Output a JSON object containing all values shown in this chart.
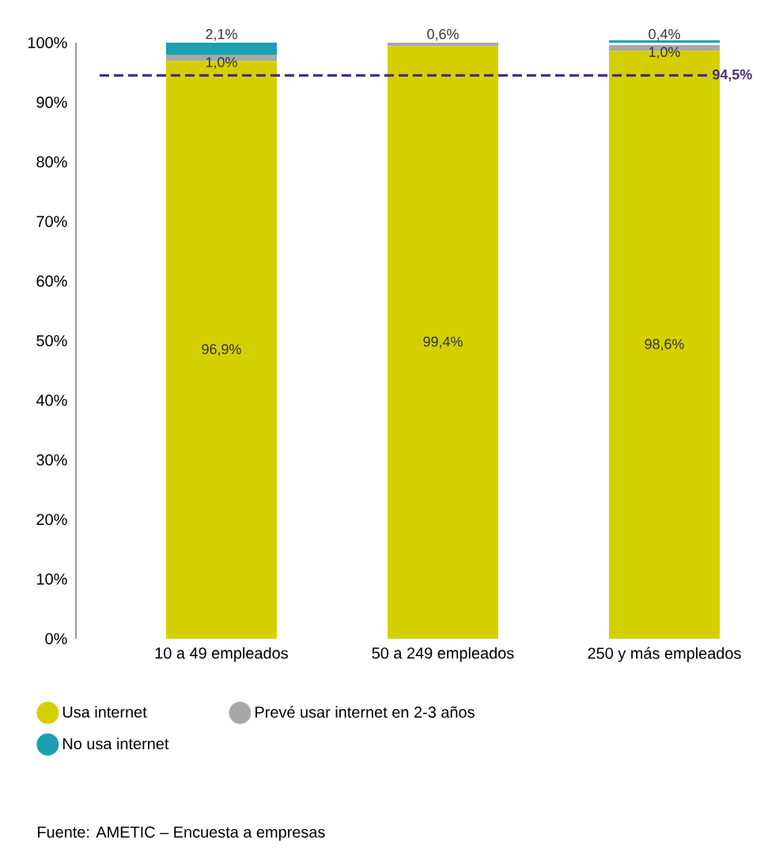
{
  "chart_data": {
    "type": "bar",
    "stacked": true,
    "categories": [
      "10 a 49 empleados",
      "50 a 249 empleados",
      "250 y más empleados"
    ],
    "series": [
      {
        "name": "Usa internet",
        "color": "#d4d000",
        "values": [
          96.9,
          99.4,
          98.6
        ],
        "value_labels": [
          "96,9%",
          "99,4%",
          "98,6%"
        ]
      },
      {
        "name": "Prevé usar internet en 2-3 años",
        "color": "#a8a8a8",
        "values": [
          1.0,
          0.6,
          1.0
        ],
        "value_labels": [
          "1,0%",
          "0,6%",
          "1,0%"
        ]
      },
      {
        "name": "No usa internet",
        "color": "#1aa0b0",
        "values": [
          2.1,
          null,
          0.4
        ],
        "value_labels": [
          "2,1%",
          null,
          "0,4%"
        ]
      }
    ],
    "ylim": [
      0,
      100
    ],
    "yticks": [
      {
        "value": 0,
        "label": "0%"
      },
      {
        "value": 10,
        "label": "10%"
      },
      {
        "value": 20,
        "label": "20%"
      },
      {
        "value": 30,
        "label": "30%"
      },
      {
        "value": 40,
        "label": "40%"
      },
      {
        "value": 50,
        "label": "50%"
      },
      {
        "value": 60,
        "label": "60%"
      },
      {
        "value": 70,
        "label": "70%"
      },
      {
        "value": 80,
        "label": "80%"
      },
      {
        "value": 90,
        "label": "90%"
      },
      {
        "value": 100,
        "label": "100%"
      }
    ],
    "ref_lines": [
      {
        "axis": "y",
        "value": 94.5,
        "label": "94,5%",
        "color": "#4b2e83",
        "line_style": "dashed"
      }
    ],
    "grid": false,
    "legend": "bottom",
    "annotations": [
      "Fuente: AMETIC – Encuesta a empresas"
    ]
  }
}
